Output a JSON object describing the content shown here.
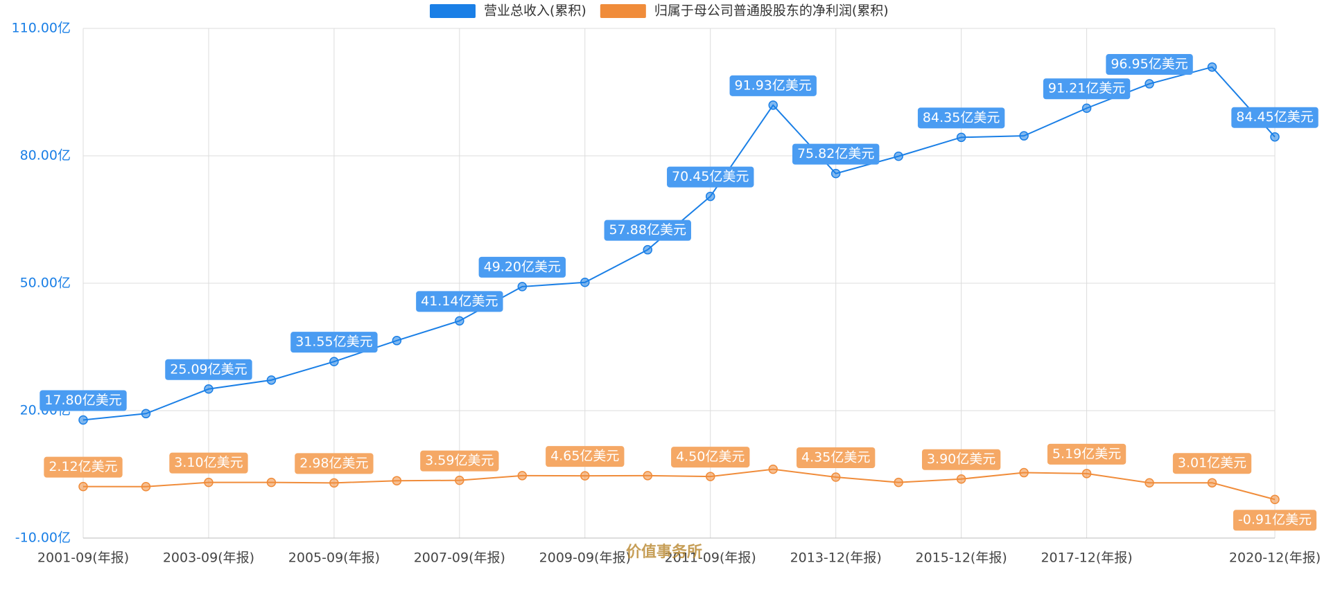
{
  "chart_data": {
    "type": "line",
    "categories": [
      "2001-09(年报)",
      null,
      "2003-09(年报)",
      null,
      "2005-09(年报)",
      null,
      "2007-09(年报)",
      null,
      "2009-09(年报)",
      null,
      "2011-09(年报)",
      null,
      "2013-12(年报)",
      null,
      "2015-12(年报)",
      null,
      "2017-12(年报)",
      null,
      null,
      "2020-12(年报)"
    ],
    "series": [
      {
        "name": "营业总收入(累积)",
        "color": "#1a7fe6",
        "label_color": "#4a9cf2",
        "values": [
          17.8,
          19.3,
          25.09,
          27.2,
          31.55,
          36.5,
          41.14,
          49.2,
          50.2,
          57.88,
          70.45,
          91.93,
          75.82,
          79.9,
          84.35,
          84.7,
          91.21,
          96.95,
          100.9,
          84.45
        ],
        "value_labels": [
          "17.80亿美元",
          null,
          "25.09亿美元",
          null,
          "31.55亿美元",
          null,
          "41.14亿美元",
          "49.20亿美元",
          null,
          "57.88亿美元",
          "70.45亿美元",
          "91.93亿美元",
          "75.82亿美元",
          null,
          "84.35亿美元",
          null,
          "91.21亿美元",
          "96.95亿美元",
          null,
          "84.45亿美元"
        ]
      },
      {
        "name": "归属于母公司普通股股东的净利润(累积)",
        "color": "#f08c3a",
        "label_color": "#f5a865",
        "values": [
          2.12,
          2.1,
          3.1,
          3.1,
          2.98,
          3.5,
          3.59,
          4.7,
          4.65,
          4.7,
          4.5,
          6.2,
          4.35,
          3.1,
          3.9,
          5.4,
          5.19,
          3.0,
          3.01,
          -0.91
        ],
        "value_labels": [
          "2.12亿美元",
          null,
          "3.10亿美元",
          null,
          "2.98亿美元",
          null,
          "3.59亿美元",
          null,
          "4.65亿美元",
          null,
          "4.50亿美元",
          null,
          "4.35亿美元",
          null,
          "3.90亿美元",
          null,
          "5.19亿美元",
          null,
          "3.01亿美元",
          "-0.91亿美元"
        ]
      }
    ],
    "ylim": [
      -10,
      110
    ],
    "yticks": [
      {
        "value": -10,
        "label": "-10.00亿"
      },
      {
        "value": 20,
        "label": "20.00亿"
      },
      {
        "value": 50,
        "label": "50.00亿"
      },
      {
        "value": 80,
        "label": "80.00亿"
      },
      {
        "value": 110,
        "label": "110.00亿"
      }
    ],
    "grid": true,
    "legend": "top",
    "watermark": "价值事务所"
  }
}
